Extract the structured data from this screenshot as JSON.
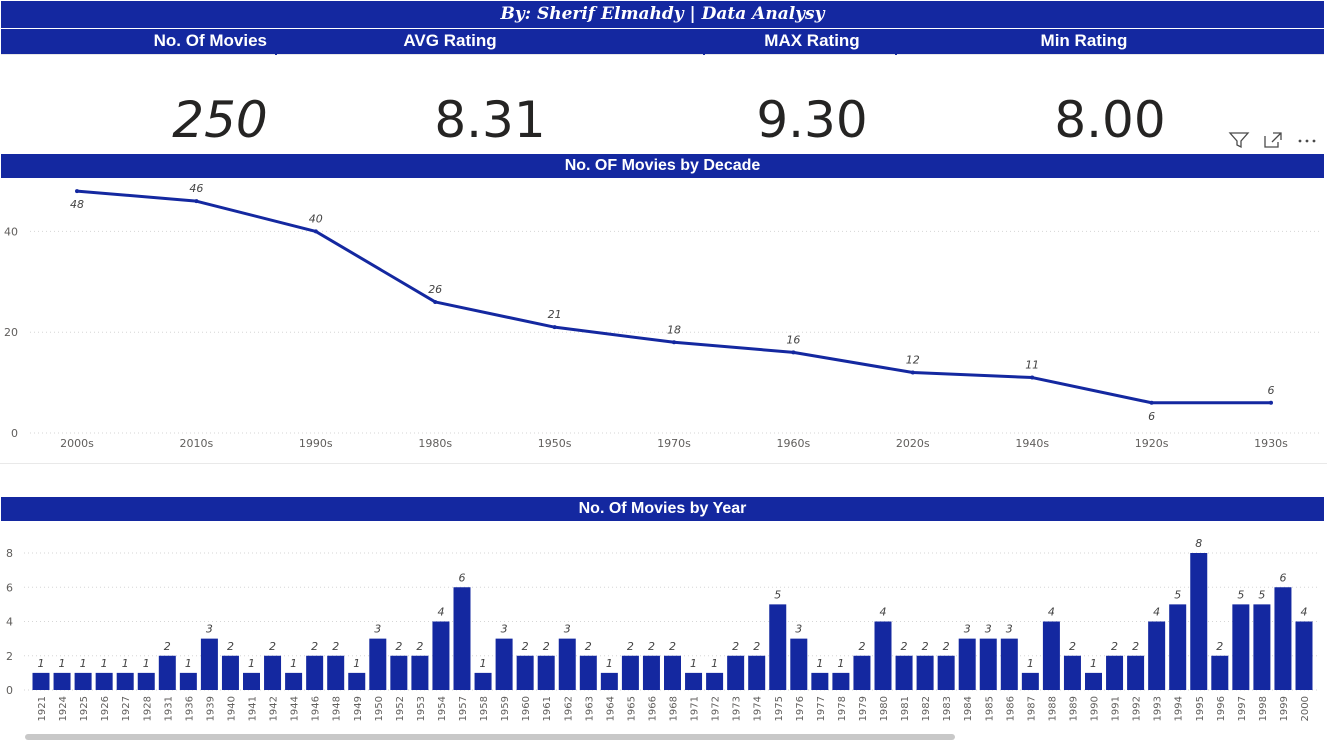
{
  "title": "By: Sherif Elmahdy | Data Analysy",
  "kpis": {
    "movies_label": "No. Of Movies",
    "movies_value": "250",
    "avg_label": "AVG Rating",
    "avg_value": "8.31",
    "max_label": "MAX Rating",
    "max_value": "9.30",
    "min_label": "Min Rating",
    "min_value": "8.00"
  },
  "icons": [
    "filter-icon",
    "focus-mode-icon",
    "more-options-icon"
  ],
  "colors": {
    "accent": "#1428a0",
    "header_text": "#ffffff",
    "value_text": "#252423",
    "axis_text": "#605e5c"
  },
  "chart_data": [
    {
      "type": "line",
      "title": "No. OF Movies by Decade",
      "categories": [
        "2000s",
        "2010s",
        "1990s",
        "1980s",
        "1950s",
        "1970s",
        "1960s",
        "2020s",
        "1940s",
        "1920s",
        "1930s"
      ],
      "values": [
        48,
        46,
        40,
        26,
        21,
        18,
        16,
        12,
        11,
        6,
        6
      ],
      "ylim": [
        0,
        50
      ],
      "yticks": [
        0,
        20,
        40
      ],
      "xlabel": "",
      "ylabel": "",
      "grid": true
    },
    {
      "type": "bar",
      "title": "No. Of Movies by Year",
      "categories": [
        "1921",
        "1924",
        "1925",
        "1926",
        "1927",
        "1928",
        "1931",
        "1936",
        "1939",
        "1940",
        "1941",
        "1942",
        "1944",
        "1946",
        "1948",
        "1949",
        "1950",
        "1952",
        "1953",
        "1954",
        "1957",
        "1958",
        "1959",
        "1960",
        "1961",
        "1962",
        "1963",
        "1964",
        "1965",
        "1966",
        "1968",
        "1971",
        "1972",
        "1973",
        "1974",
        "1975",
        "1976",
        "1977",
        "1978",
        "1979",
        "1980",
        "1981",
        "1982",
        "1983",
        "1984",
        "1985",
        "1986",
        "1987",
        "1988",
        "1989",
        "1990",
        "1991",
        "1992",
        "1993",
        "1994",
        "1995",
        "1996",
        "1997",
        "1998",
        "1999",
        "2000"
      ],
      "values": [
        1,
        1,
        1,
        1,
        1,
        1,
        2,
        1,
        3,
        2,
        1,
        2,
        1,
        2,
        2,
        1,
        3,
        2,
        2,
        4,
        6,
        1,
        3,
        2,
        2,
        3,
        2,
        1,
        2,
        2,
        2,
        1,
        1,
        2,
        2,
        5,
        3,
        1,
        1,
        2,
        4,
        2,
        2,
        2,
        3,
        3,
        3,
        1,
        4,
        2,
        1,
        2,
        2,
        4,
        5,
        8,
        2,
        5,
        5,
        6,
        4
      ],
      "ylim": [
        0,
        8
      ],
      "yticks": [
        0,
        2,
        4,
        6,
        8
      ],
      "xlabel": "",
      "ylabel": "",
      "grid": true
    }
  ]
}
